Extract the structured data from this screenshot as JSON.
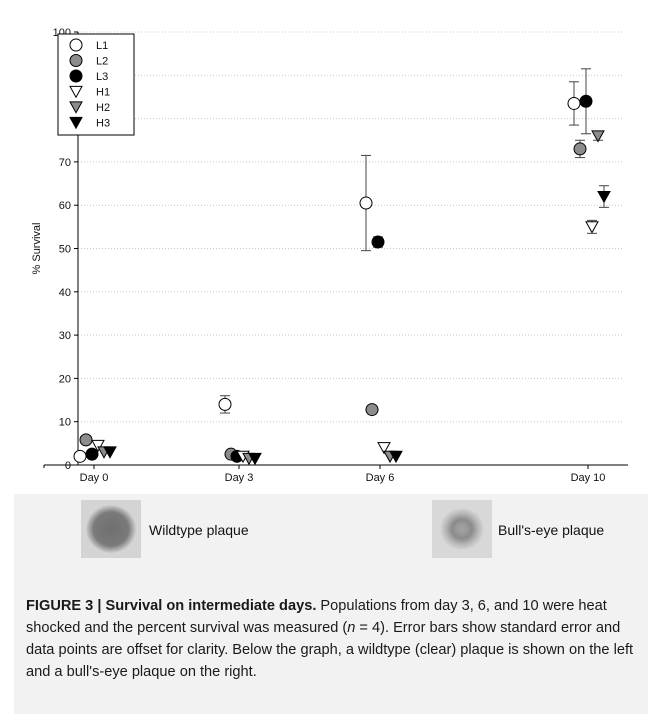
{
  "chart_data": {
    "type": "scatter",
    "ylabel": "% Survival",
    "xlabel": "",
    "ylim": [
      0,
      100
    ],
    "yticks": [
      0,
      10,
      20,
      30,
      40,
      50,
      60,
      70,
      80,
      90,
      100
    ],
    "categories": [
      "Day 0",
      "Day 3",
      "Day 6",
      "Day 10"
    ],
    "grid": "horizontal dotted",
    "legend_position": "top-left",
    "series": [
      {
        "name": "L1",
        "marker": "circle",
        "fill": "#ffffff",
        "x": [
          "Day 0",
          "Day 3",
          "Day 6",
          "Day 10"
        ],
        "values": [
          2,
          14,
          60.5,
          83.5
        ],
        "errors": [
          0.5,
          2,
          11,
          5
        ]
      },
      {
        "name": "L2",
        "marker": "circle",
        "fill": "#8c8c8c",
        "x": [
          "Day 0",
          "Day 3",
          "Day 6",
          "Day 10"
        ],
        "values": [
          5.8,
          2.5,
          12.8,
          73
        ],
        "errors": [
          0.5,
          0.5,
          0.3,
          2
        ]
      },
      {
        "name": "L3",
        "marker": "circle",
        "fill": "#000000",
        "x": [
          "Day 0",
          "Day 3",
          "Day 6",
          "Day 10"
        ],
        "values": [
          2.5,
          2,
          51.5,
          84
        ],
        "errors": [
          0.3,
          0.3,
          1.2,
          7.5
        ]
      },
      {
        "name": "H1",
        "marker": "triangle-down",
        "fill": "#ffffff",
        "x": [
          "Day 0",
          "Day 3",
          "Day 6",
          "Day 10"
        ],
        "values": [
          4.5,
          2,
          4,
          55
        ],
        "errors": [
          0.3,
          0.3,
          0.3,
          1.5
        ]
      },
      {
        "name": "H2",
        "marker": "triangle-down",
        "fill": "#8c8c8c",
        "x": [
          "Day 0",
          "Day 3",
          "Day 6",
          "Day 10"
        ],
        "values": [
          3,
          1.5,
          2,
          76
        ],
        "errors": [
          0.3,
          0.3,
          0.3,
          1
        ]
      },
      {
        "name": "H3",
        "marker": "triangle-down",
        "fill": "#000000",
        "x": [
          "Day 0",
          "Day 3",
          "Day 6",
          "Day 10"
        ],
        "values": [
          3,
          1.5,
          2,
          62
        ],
        "errors": [
          0.3,
          0.3,
          0.3,
          2.5
        ]
      }
    ]
  },
  "plaques": {
    "wildtype_label": "Wildtype plaque",
    "bullseye_label": "Bull's-eye plaque"
  },
  "caption": {
    "title": "FIGURE 3 | Survival on intermediate days.",
    "text_a": " Populations from day 3, 6, and 10 were heat shocked and the percent survival was measured (",
    "n_symbol": "n",
    "text_b": " = 4). Error bars show standard error and data points are offset for clarity. Below the graph, a wildtype (clear) plaque is shown on the left and a bull's-eye plaque on the right."
  }
}
